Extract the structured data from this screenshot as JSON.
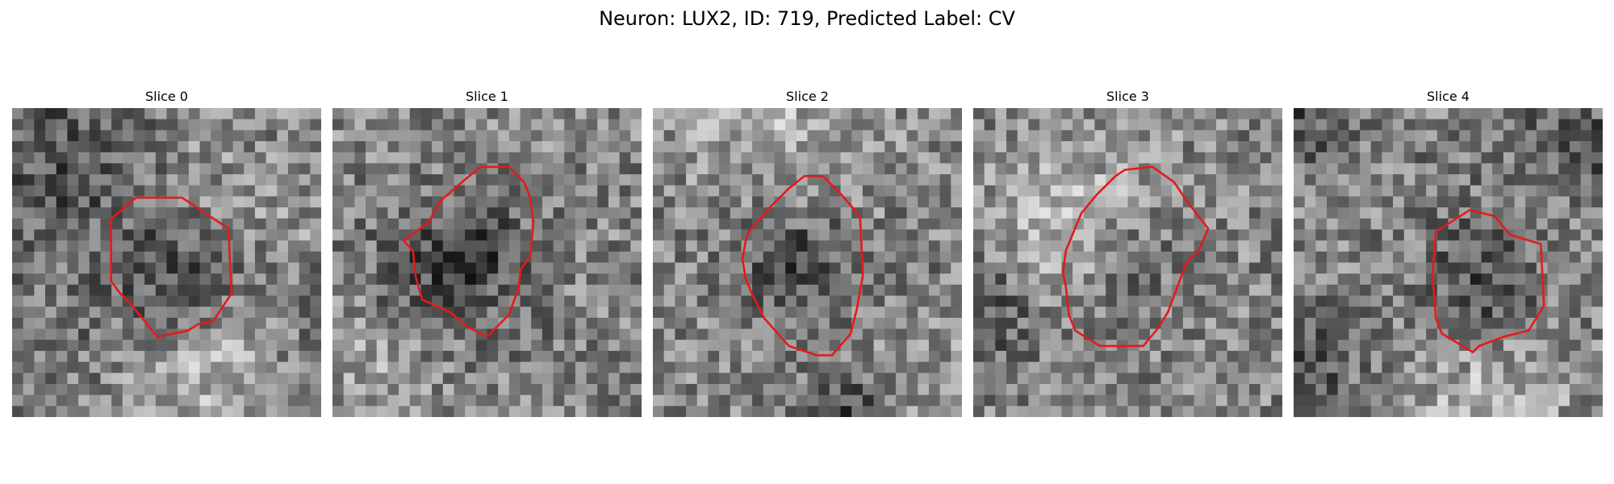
{
  "figure": {
    "title": "Neuron: LUX2, ID: 719, Predicted Label: CV",
    "contour_color": "#e41a1c"
  },
  "panels": [
    {
      "title": "Slice 0",
      "seed": 11,
      "contour": [
        [
          0.32,
          0.36
        ],
        [
          0.4,
          0.29
        ],
        [
          0.55,
          0.29
        ],
        [
          0.7,
          0.39
        ],
        [
          0.71,
          0.6
        ],
        [
          0.67,
          0.66
        ],
        [
          0.65,
          0.69
        ],
        [
          0.6,
          0.7
        ],
        [
          0.57,
          0.72
        ],
        [
          0.47,
          0.74
        ],
        [
          0.38,
          0.63
        ],
        [
          0.35,
          0.6
        ],
        [
          0.32,
          0.56
        ]
      ]
    },
    {
      "title": "Slice 1",
      "seed": 23,
      "contour": [
        [
          0.31,
          0.37
        ],
        [
          0.35,
          0.3
        ],
        [
          0.43,
          0.23
        ],
        [
          0.48,
          0.19
        ],
        [
          0.57,
          0.19
        ],
        [
          0.62,
          0.24
        ],
        [
          0.64,
          0.29
        ],
        [
          0.65,
          0.37
        ],
        [
          0.64,
          0.48
        ],
        [
          0.61,
          0.52
        ],
        [
          0.6,
          0.59
        ],
        [
          0.57,
          0.67
        ],
        [
          0.5,
          0.74
        ],
        [
          0.44,
          0.71
        ],
        [
          0.38,
          0.66
        ],
        [
          0.29,
          0.62
        ],
        [
          0.27,
          0.55
        ],
        [
          0.26,
          0.46
        ],
        [
          0.23,
          0.43
        ]
      ]
    },
    {
      "title": "Slice 2",
      "seed": 37,
      "contour": [
        [
          0.31,
          0.4
        ],
        [
          0.38,
          0.32
        ],
        [
          0.44,
          0.26
        ],
        [
          0.49,
          0.22
        ],
        [
          0.55,
          0.22
        ],
        [
          0.61,
          0.28
        ],
        [
          0.67,
          0.35
        ],
        [
          0.68,
          0.54
        ],
        [
          0.66,
          0.65
        ],
        [
          0.64,
          0.73
        ],
        [
          0.58,
          0.8
        ],
        [
          0.53,
          0.8
        ],
        [
          0.44,
          0.77
        ],
        [
          0.36,
          0.68
        ],
        [
          0.32,
          0.6
        ],
        [
          0.3,
          0.55
        ],
        [
          0.29,
          0.49
        ],
        [
          0.3,
          0.43
        ]
      ]
    },
    {
      "title": "Slice 3",
      "seed": 53,
      "contour": [
        [
          0.35,
          0.34
        ],
        [
          0.4,
          0.28
        ],
        [
          0.46,
          0.22
        ],
        [
          0.49,
          0.2
        ],
        [
          0.58,
          0.19
        ],
        [
          0.65,
          0.24
        ],
        [
          0.69,
          0.3
        ],
        [
          0.76,
          0.39
        ],
        [
          0.73,
          0.46
        ],
        [
          0.69,
          0.5
        ],
        [
          0.66,
          0.58
        ],
        [
          0.63,
          0.66
        ],
        [
          0.6,
          0.71
        ],
        [
          0.55,
          0.77
        ],
        [
          0.41,
          0.77
        ],
        [
          0.33,
          0.72
        ],
        [
          0.31,
          0.67
        ],
        [
          0.3,
          0.58
        ],
        [
          0.29,
          0.53
        ],
        [
          0.3,
          0.46
        ]
      ]
    },
    {
      "title": "Slice 4",
      "seed": 71,
      "contour": [
        [
          0.46,
          0.4
        ],
        [
          0.57,
          0.33
        ],
        [
          0.65,
          0.35
        ],
        [
          0.7,
          0.41
        ],
        [
          0.8,
          0.44
        ],
        [
          0.81,
          0.64
        ],
        [
          0.76,
          0.72
        ],
        [
          0.68,
          0.74
        ],
        [
          0.6,
          0.77
        ],
        [
          0.58,
          0.79
        ],
        [
          0.48,
          0.73
        ],
        [
          0.46,
          0.68
        ],
        [
          0.45,
          0.54
        ]
      ]
    }
  ]
}
